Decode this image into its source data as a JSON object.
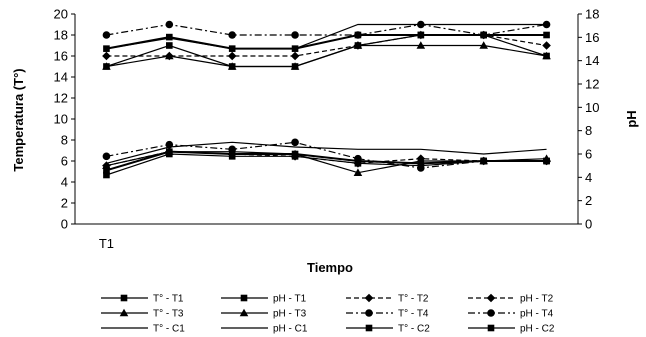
{
  "chart_data": {
    "type": "line",
    "categories": [
      "T1",
      "",
      "",
      "",
      "",
      "",
      "",
      ""
    ],
    "xlabel": "Tiempo",
    "ylabel": "Temperatura (T°)",
    "y2label": "pH",
    "ylim": [
      0,
      20
    ],
    "y2lim": [
      0,
      18
    ],
    "yticks": [
      "0",
      "2",
      "4",
      "6",
      "8",
      "10",
      "12",
      "14",
      "16",
      "18",
      "20"
    ],
    "y2ticks": [
      "0",
      "2",
      "4",
      "6",
      "8",
      "10",
      "12",
      "14",
      "16",
      "18"
    ],
    "series": [
      {
        "name": "T° - T1",
        "axis": "left",
        "marker": "square",
        "dash": "solid",
        "values": [
          15.0,
          17.0,
          15.0,
          15.0,
          17.0,
          18.0,
          18.0,
          16.0
        ]
      },
      {
        "name": "pH - T1",
        "axis": "right",
        "marker": "square",
        "dash": "solid",
        "values": [
          4.2,
          6.0,
          5.8,
          5.8,
          5.2,
          5.0,
          5.4,
          5.4
        ]
      },
      {
        "name": "T° - T2",
        "axis": "left",
        "marker": "diamond",
        "dash": "dashed",
        "values": [
          16.0,
          16.0,
          16.0,
          16.0,
          17.0,
          18.0,
          18.0,
          17.0
        ]
      },
      {
        "name": "pH - T2",
        "axis": "right",
        "marker": "diamond",
        "dash": "dashed",
        "values": [
          5.0,
          6.2,
          6.0,
          5.8,
          5.2,
          5.6,
          5.4,
          5.4
        ]
      },
      {
        "name": "T° - T3",
        "axis": "left",
        "marker": "triangle",
        "dash": "solid",
        "values": [
          15.0,
          16.0,
          15.0,
          15.0,
          17.0,
          17.0,
          17.0,
          16.0
        ]
      },
      {
        "name": "pH - T3",
        "axis": "right",
        "marker": "triangle",
        "dash": "solid",
        "values": [
          5.0,
          6.2,
          6.2,
          6.0,
          4.4,
          5.4,
          5.4,
          5.6
        ]
      },
      {
        "name": "T° - T4",
        "axis": "left",
        "marker": "circle",
        "dash": "dashdot",
        "values": [
          18.0,
          19.0,
          18.0,
          18.0,
          18.0,
          19.0,
          18.0,
          19.0
        ]
      },
      {
        "name": "pH - T4",
        "axis": "right",
        "marker": "circle",
        "dash": "dashdot",
        "values": [
          5.8,
          6.8,
          6.4,
          7.0,
          5.6,
          4.8,
          5.4,
          5.4
        ]
      },
      {
        "name": "T° - C1",
        "axis": "left",
        "marker": "none",
        "dash": "solid",
        "values": [
          16.7,
          17.7,
          16.7,
          16.7,
          19.0,
          19.0,
          19.0,
          19.0
        ]
      },
      {
        "name": "pH - C1",
        "axis": "right",
        "marker": "none",
        "dash": "solid",
        "values": [
          5.2,
          6.6,
          7.0,
          6.6,
          6.4,
          6.4,
          6.0,
          6.4
        ]
      },
      {
        "name": "T° - C2",
        "axis": "left",
        "marker": "square",
        "dash": "solid",
        "values": [
          16.7,
          17.8,
          16.7,
          16.7,
          18.0,
          18.0,
          18.0,
          18.0
        ]
      },
      {
        "name": "pH - C2",
        "axis": "right",
        "marker": "square",
        "dash": "solid",
        "values": [
          4.6,
          6.2,
          6.0,
          6.0,
          5.4,
          5.2,
          5.4,
          5.4
        ]
      }
    ],
    "legend_position": "bottom",
    "grid": false
  }
}
